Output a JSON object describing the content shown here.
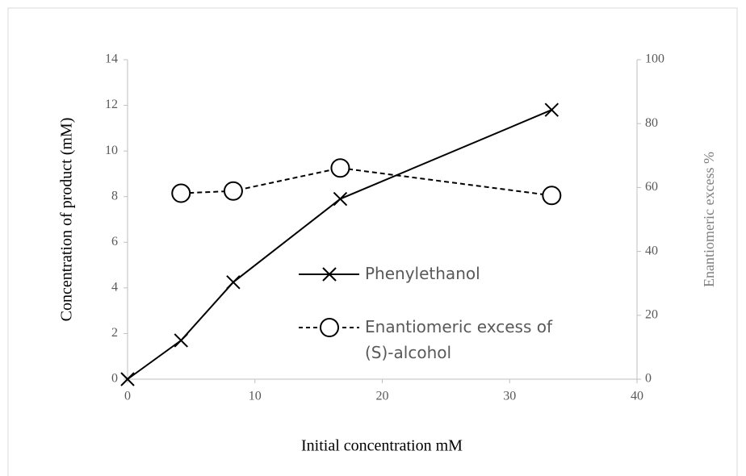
{
  "chart_data": {
    "type": "line",
    "x_label": "Initial concentration mM",
    "y_label": "Concentration of product (mM)",
    "y2_label": "Enantiomeric excess %",
    "xlim": [
      0,
      40
    ],
    "xticks": [
      0,
      10,
      20,
      30,
      40
    ],
    "ylim": [
      0,
      14
    ],
    "yticks": [
      0,
      2,
      4,
      6,
      8,
      10,
      12,
      14
    ],
    "y2lim": [
      0,
      100
    ],
    "y2ticks": [
      0,
      20,
      40,
      60,
      80,
      100
    ],
    "series": [
      {
        "name": "Phenylethanol",
        "color": "#000000",
        "marker": "x",
        "dash": false,
        "x": [
          0,
          4.2,
          8.3,
          16.7,
          33.3
        ],
        "values": [
          0,
          1.7,
          4.25,
          7.9,
          11.8
        ]
      },
      {
        "name": "Enantiomeric excess of (S)-alcohol",
        "color": "#000000",
        "marker": "circle",
        "dash": true,
        "axis": "y2",
        "x": [
          4.2,
          8.3,
          16.7,
          33.3
        ],
        "values": [
          58.2,
          58.9,
          66.1,
          57.5
        ]
      }
    ]
  }
}
